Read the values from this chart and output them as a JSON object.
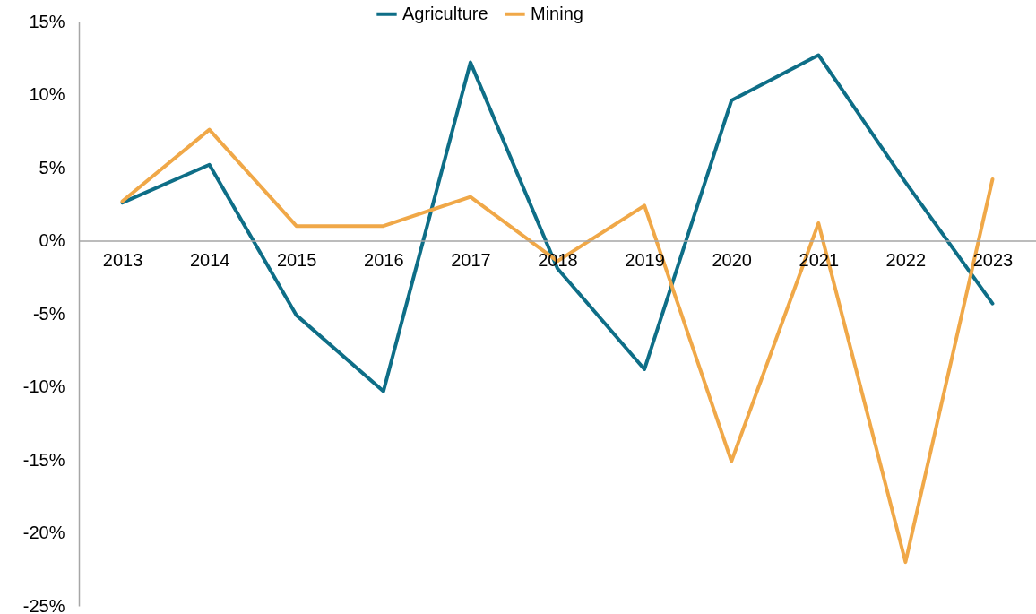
{
  "chart_data": {
    "type": "line",
    "categories": [
      "2013",
      "2014",
      "2015",
      "2016",
      "2017",
      "2018",
      "2019",
      "2020",
      "2021",
      "2022",
      "2023"
    ],
    "series": [
      {
        "name": "Agriculture",
        "color": "#0e6e87",
        "values": [
          2.6,
          5.2,
          -5.1,
          -10.3,
          12.2,
          -1.9,
          -8.8,
          9.6,
          12.7,
          4.0,
          -4.3
        ]
      },
      {
        "name": "Mining",
        "color": "#f0a848",
        "values": [
          2.7,
          7.6,
          1.0,
          1.0,
          3.0,
          -1.4,
          2.4,
          -15.1,
          1.2,
          -22.0,
          4.2
        ]
      }
    ],
    "ylim": [
      -25,
      15
    ],
    "yticks": [
      {
        "value": -25,
        "label": "-25%"
      },
      {
        "value": -20,
        "label": "-20%"
      },
      {
        "value": -15,
        "label": "-15%"
      },
      {
        "value": -10,
        "label": "-10%"
      },
      {
        "value": -5,
        "label": "-5%"
      },
      {
        "value": 0,
        "label": "0%"
      },
      {
        "value": 5,
        "label": "5%"
      },
      {
        "value": 10,
        "label": "10%"
      },
      {
        "value": 15,
        "label": "15%"
      }
    ],
    "grid": false,
    "legend": "top",
    "marker": "none",
    "line_style": "solid"
  }
}
